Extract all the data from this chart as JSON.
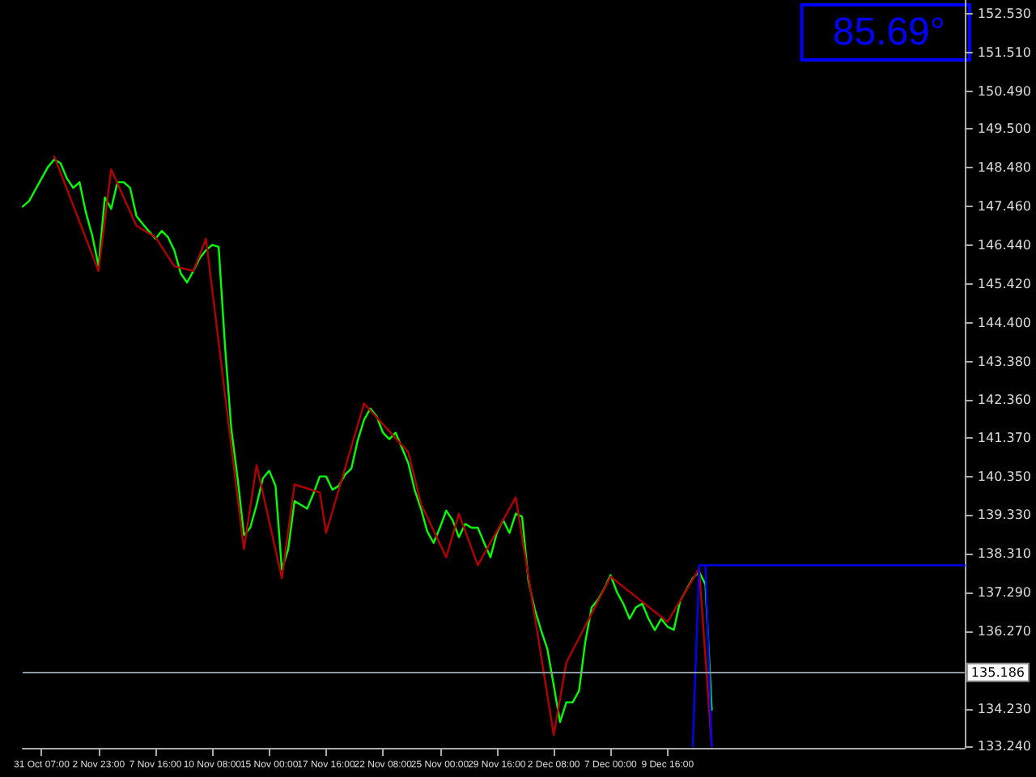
{
  "chart_data": {
    "type": "line",
    "marker": "none",
    "line_style": "solid",
    "categories": [
      null,
      null,
      null,
      "31 Oct 07:00",
      null,
      null,
      null,
      null,
      null,
      null,
      null,
      null,
      "2 Nov 23:00",
      null,
      null,
      null,
      null,
      null,
      null,
      null,
      null,
      "7 Nov 16:00",
      null,
      null,
      null,
      null,
      null,
      null,
      null,
      null,
      "10 Nov 08:00",
      null,
      null,
      null,
      null,
      null,
      null,
      null,
      null,
      "15 Nov 00:00",
      null,
      null,
      null,
      null,
      null,
      null,
      null,
      null,
      "17 Nov 16:00",
      null,
      null,
      null,
      null,
      null,
      null,
      null,
      null,
      "22 Nov 08:00",
      null,
      null,
      null,
      null,
      null,
      null,
      null,
      null,
      "25 Nov 00:00",
      null,
      null,
      null,
      null,
      null,
      null,
      null,
      null,
      "29 Nov 16:00",
      null,
      null,
      null,
      null,
      null,
      null,
      null,
      null,
      "2 Dec 08:00",
      null,
      null,
      null,
      null,
      null,
      null,
      null,
      null,
      "7 Dec 00:00",
      null,
      null,
      null,
      null,
      null,
      null,
      null,
      null,
      "9 Dec 16:00",
      null,
      null,
      null,
      null,
      null,
      null,
      null,
      null,
      null,
      null,
      null,
      null,
      null,
      null,
      null,
      null,
      null,
      null,
      null,
      null,
      null,
      null,
      null,
      null,
      null,
      null,
      null,
      null,
      null,
      null,
      null,
      null,
      null,
      null,
      null,
      null,
      null,
      null,
      null,
      null,
      null,
      null,
      null,
      null,
      null,
      null,
      null
    ],
    "ylim": [
      133.2,
      152.9
    ],
    "yticks": [
      {
        "value": 133.24,
        "label": "133.240"
      },
      {
        "value": 134.23,
        "label": "134.230"
      },
      {
        "value": 136.27,
        "label": "136.270"
      },
      {
        "value": 137.29,
        "label": "137.290"
      },
      {
        "value": 138.31,
        "label": "138.310"
      },
      {
        "value": 139.33,
        "label": "139.330"
      },
      {
        "value": 140.35,
        "label": "140.350"
      },
      {
        "value": 141.37,
        "label": "141.370"
      },
      {
        "value": 142.36,
        "label": "142.360"
      },
      {
        "value": 143.38,
        "label": "143.380"
      },
      {
        "value": 144.4,
        "label": "144.400"
      },
      {
        "value": 145.42,
        "label": "145.420"
      },
      {
        "value": 146.44,
        "label": "146.440"
      },
      {
        "value": 147.46,
        "label": "147.460"
      },
      {
        "value": 148.48,
        "label": "148.480"
      },
      {
        "value": 149.5,
        "label": "149.500"
      },
      {
        "value": 150.49,
        "label": "150.490"
      },
      {
        "value": 151.51,
        "label": "151.510"
      },
      {
        "value": 152.53,
        "label": "152.530"
      }
    ],
    "ref_lines": [
      {
        "axis": "y",
        "value": 135.186,
        "label": "135.186",
        "color": "#8c9aa6"
      }
    ],
    "annotations": [
      "85.69°"
    ],
    "series": [
      {
        "color": "#00ff00",
        "values": [
          147.46,
          147.6,
          147.9,
          148.2,
          148.5,
          148.7,
          148.6,
          148.2,
          147.95,
          148.1,
          147.3,
          146.7,
          145.89,
          147.7,
          147.4,
          148.1,
          148.1,
          147.95,
          147.21,
          147.0,
          146.8,
          146.61,
          146.82,
          146.65,
          146.3,
          145.7,
          145.46,
          145.76,
          146.1,
          146.31,
          146.45,
          146.4,
          143.8,
          141.6,
          140.3,
          138.8,
          139.0,
          139.6,
          140.3,
          140.5,
          140.1,
          137.9,
          138.43,
          139.7,
          139.6,
          139.5,
          139.9,
          140.35,
          140.35,
          140.0,
          140.1,
          140.4,
          140.56,
          141.3,
          141.84,
          142.14,
          141.93,
          141.5,
          141.33,
          141.5,
          141.1,
          140.7,
          140.0,
          139.5,
          138.9,
          138.6,
          139.0,
          139.45,
          139.2,
          138.75,
          139.1,
          139.0,
          139.0,
          138.6,
          138.22,
          138.86,
          139.2,
          138.86,
          139.37,
          139.29,
          137.6,
          136.85,
          136.3,
          135.8,
          134.85,
          133.88,
          134.4,
          134.4,
          134.7,
          136.0,
          136.9,
          137.1,
          137.4,
          137.75,
          137.3,
          137.0,
          136.6,
          136.9,
          137.0,
          136.6,
          136.3,
          136.6,
          136.39,
          136.31,
          137.07,
          137.37,
          137.67,
          137.84,
          137.5,
          134.2,
          null,
          null,
          null,
          null,
          null,
          null,
          null,
          null,
          null,
          null,
          null,
          null,
          null,
          null,
          null,
          null,
          null,
          null,
          null,
          null,
          null,
          null,
          null,
          null,
          null,
          null,
          null,
          null,
          null,
          null,
          null,
          null,
          null,
          null,
          null,
          null,
          null,
          null,
          null,
          null
        ]
      },
      {
        "color": "#b00000",
        "values": [
          null,
          null,
          null,
          null,
          null,
          148.78,
          null,
          null,
          null,
          null,
          null,
          null,
          145.76,
          null,
          148.44,
          null,
          null,
          null,
          146.95,
          null,
          null,
          146.65,
          null,
          null,
          145.89,
          null,
          null,
          145.76,
          null,
          146.61,
          null,
          null,
          null,
          null,
          null,
          138.43,
          null,
          140.65,
          null,
          null,
          null,
          137.67,
          null,
          140.14,
          null,
          null,
          null,
          139.93,
          138.86,
          null,
          null,
          null,
          null,
          null,
          142.27,
          null,
          null,
          null,
          null,
          null,
          null,
          140.99,
          null,
          139.63,
          null,
          null,
          null,
          138.22,
          null,
          139.37,
          null,
          null,
          138.01,
          null,
          null,
          null,
          null,
          null,
          139.8,
          null,
          null,
          null,
          null,
          null,
          133.54,
          null,
          135.45,
          null,
          136.09,
          null,
          null,
          null,
          null,
          137.71,
          null,
          null,
          null,
          null,
          null,
          null,
          null,
          null,
          136.52,
          null,
          null,
          null,
          null,
          137.92,
          null,
          133.24,
          null,
          null,
          null,
          null,
          null,
          null,
          null,
          null,
          null,
          null,
          null,
          null,
          null,
          null,
          null,
          null,
          null,
          null,
          null,
          null,
          null,
          null,
          null,
          null,
          null,
          null,
          null,
          null,
          null,
          null,
          null,
          null,
          null,
          null,
          null,
          null,
          null,
          null,
          null,
          null
        ]
      },
      {
        "color": "#0000ff",
        "values": [
          null,
          null,
          null,
          null,
          null,
          null,
          null,
          null,
          null,
          null,
          null,
          null,
          null,
          null,
          null,
          null,
          null,
          null,
          null,
          null,
          null,
          null,
          null,
          null,
          null,
          null,
          null,
          null,
          null,
          null,
          null,
          null,
          null,
          null,
          null,
          null,
          null,
          null,
          null,
          null,
          null,
          null,
          null,
          null,
          null,
          null,
          null,
          null,
          null,
          null,
          null,
          null,
          null,
          null,
          null,
          null,
          null,
          null,
          null,
          null,
          null,
          null,
          null,
          null,
          null,
          null,
          null,
          null,
          null,
          null,
          null,
          null,
          null,
          null,
          null,
          null,
          null,
          null,
          null,
          null,
          null,
          null,
          null,
          null,
          null,
          null,
          null,
          null,
          null,
          null,
          null,
          null,
          null,
          null,
          null,
          null,
          null,
          null,
          null,
          null,
          null,
          null,
          null,
          null,
          null,
          null,
          133.24,
          138.01,
          138.01,
          138.01,
          138.01,
          138.01,
          138.01,
          138.01,
          138.01,
          138.01,
          138.01,
          138.01,
          138.01,
          138.01,
          138.01,
          138.01,
          138.01,
          138.01,
          138.01,
          138.01,
          138.01,
          138.01,
          138.01,
          138.01,
          138.01,
          138.01,
          138.01,
          138.01,
          138.01,
          138.01,
          138.01,
          138.01,
          138.01,
          138.01,
          138.01,
          138.01,
          138.01,
          138.01,
          138.01,
          138.01,
          138.01,
          138.01,
          138.01,
          138.01
        ]
      },
      {
        "color": "#0000ff",
        "values": [
          null,
          null,
          null,
          null,
          null,
          null,
          null,
          null,
          null,
          null,
          null,
          null,
          null,
          null,
          null,
          null,
          null,
          null,
          null,
          null,
          null,
          null,
          null,
          null,
          null,
          null,
          null,
          null,
          null,
          null,
          null,
          null,
          null,
          null,
          null,
          null,
          null,
          null,
          null,
          null,
          null,
          null,
          null,
          null,
          null,
          null,
          null,
          null,
          null,
          null,
          null,
          null,
          null,
          null,
          null,
          null,
          null,
          null,
          null,
          null,
          null,
          null,
          null,
          null,
          null,
          null,
          null,
          null,
          null,
          null,
          null,
          null,
          null,
          null,
          null,
          null,
          null,
          null,
          null,
          null,
          null,
          null,
          null,
          null,
          null,
          null,
          null,
          null,
          null,
          null,
          null,
          null,
          null,
          null,
          null,
          null,
          null,
          null,
          null,
          null,
          null,
          null,
          null,
          null,
          null,
          null,
          null,
          null,
          138.01,
          133.24,
          null,
          null,
          null,
          null,
          null,
          null,
          null,
          null,
          null,
          null,
          null,
          null,
          null,
          null,
          null,
          null,
          null,
          null,
          null,
          null,
          null,
          null,
          null,
          null,
          null,
          null,
          null,
          null,
          null,
          null,
          null,
          null,
          null,
          null,
          null,
          null,
          null,
          null,
          null,
          null
        ]
      }
    ]
  }
}
